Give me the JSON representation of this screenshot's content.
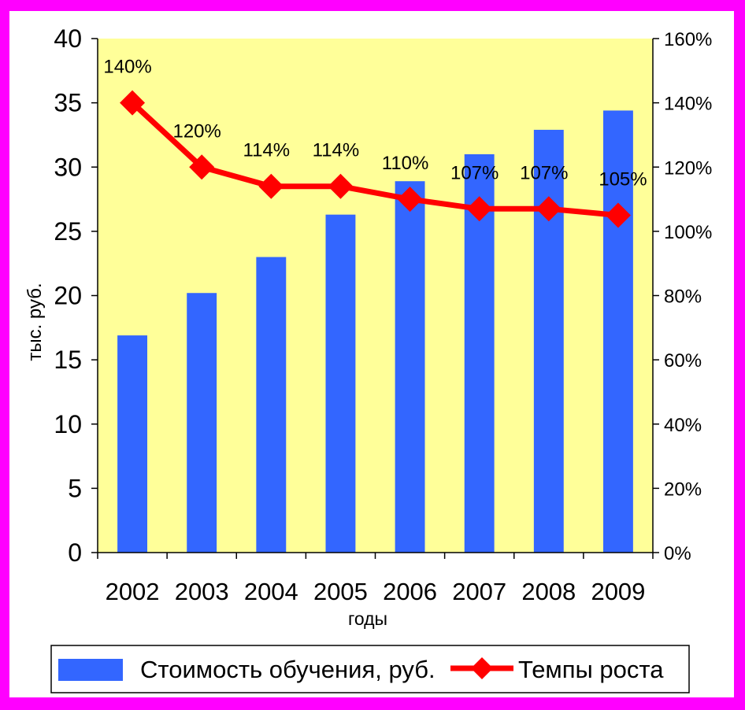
{
  "chart_data": {
    "type": "bar",
    "categories": [
      "2002",
      "2003",
      "2004",
      "2005",
      "2006",
      "2007",
      "2008",
      "2009"
    ],
    "xlabel": "годы",
    "ylabel": "тыс.  руб.",
    "ylim": [
      0,
      40
    ],
    "y_ticks": [
      "0",
      "5",
      "10",
      "15",
      "20",
      "25",
      "30",
      "35",
      "40"
    ],
    "y2lim": [
      0,
      160
    ],
    "y2_ticks": [
      "0%",
      "20%",
      "40%",
      "60%",
      "80%",
      "100%",
      "120%",
      "140%",
      "160%"
    ],
    "series": [
      {
        "name": "Стоимость обучения, руб.",
        "kind": "bar",
        "axis": "left",
        "color": "#3366ff",
        "values": [
          16.9,
          20.2,
          23.0,
          26.3,
          28.9,
          31.0,
          32.9,
          34.4
        ]
      },
      {
        "name": "Темпы роста",
        "kind": "line",
        "axis": "right",
        "color": "#ff0000",
        "values": [
          140,
          120,
          114,
          114,
          110,
          107,
          107,
          105
        ],
        "labels": [
          "140%",
          "120%",
          "114%",
          "114%",
          "110%",
          "107%",
          "107%",
          "105%"
        ]
      }
    ],
    "plot_background": "#ffff99",
    "grid": false,
    "legend_position": "bottom"
  }
}
